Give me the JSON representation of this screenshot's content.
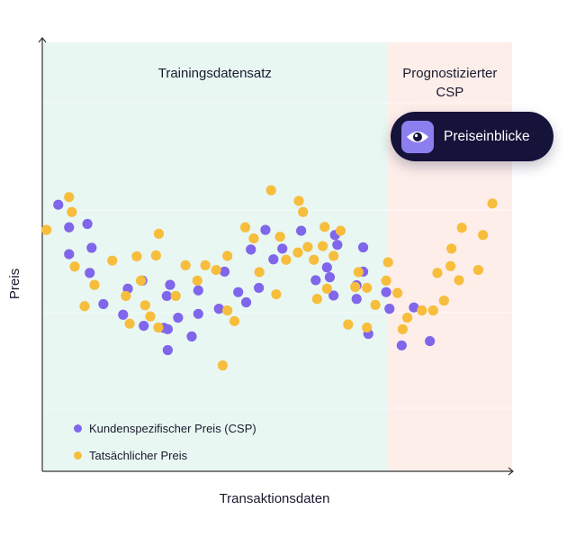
{
  "colors": {
    "training_bg": "#e8f7f2",
    "forecast_bg": "#fdeeea",
    "csp_dot": "#8066ea",
    "actual_dot": "#f7bd3c",
    "axis": "#333333",
    "badge_bg": "#15133a",
    "badge_icon_bg": "#8b7ff0"
  },
  "badge": {
    "label": "Preiseinblicke",
    "icon": "eye-icon"
  },
  "chart_data": {
    "type": "scatter",
    "xlabel": "Transaktionsdaten",
    "ylabel": "Preis",
    "xlim": [
      0,
      100
    ],
    "ylim": [
      0,
      100
    ],
    "regions": [
      {
        "name": "training",
        "label_lines": [
          "Trainingsdatensatz"
        ],
        "x_range": [
          0,
          73.5
        ]
      },
      {
        "name": "forecast",
        "label_lines": [
          "Prognostizierter",
          "CSP"
        ],
        "x_range": [
          73.5,
          100
        ]
      }
    ],
    "legend": [
      {
        "label": "Kundenspezifischer Preis (CSP)",
        "color": "#8066ea"
      },
      {
        "label": "Tatsächlicher Preis",
        "color": "#f7bd3c"
      }
    ],
    "series": [
      {
        "name": "Kundenspezifischer Preis (CSP)",
        "color": "#8066ea",
        "points": [
          [
            3.4,
            61.9
          ],
          [
            5.7,
            56.6
          ],
          [
            5.7,
            50.3
          ],
          [
            9.6,
            57.4
          ],
          [
            10.1,
            45.9
          ],
          [
            10.5,
            51.8
          ],
          [
            13.0,
            38.6
          ],
          [
            17.2,
            36.1
          ],
          [
            18.2,
            42.2
          ],
          [
            21.6,
            33.5
          ],
          [
            21.3,
            44.1
          ],
          [
            25.9,
            33.0
          ],
          [
            26.5,
            40.5
          ],
          [
            26.7,
            27.8
          ],
          [
            26.7,
            32.7
          ],
          [
            27.2,
            43.1
          ],
          [
            28.9,
            35.4
          ],
          [
            31.8,
            31.0
          ],
          [
            33.2,
            41.8
          ],
          [
            33.2,
            36.3
          ],
          [
            37.6,
            37.5
          ],
          [
            38.8,
            46.2
          ],
          [
            41.7,
            41.4
          ],
          [
            43.4,
            39.0
          ],
          [
            44.4,
            51.4
          ],
          [
            46.1,
            42.4
          ],
          [
            47.5,
            56.0
          ],
          [
            49.2,
            49.1
          ],
          [
            51.1,
            51.6
          ],
          [
            55.1,
            55.8
          ],
          [
            58.2,
            44.2
          ],
          [
            60.6,
            47.2
          ],
          [
            61.2,
            44.9
          ],
          [
            62.0,
            40.6
          ],
          [
            62.3,
            54.8
          ],
          [
            62.8,
            52.5
          ],
          [
            66.9,
            39.8
          ],
          [
            66.9,
            43.0
          ],
          [
            68.3,
            46.2
          ],
          [
            68.3,
            51.9
          ],
          [
            69.4,
            31.6
          ],
          [
            73.2,
            41.4
          ],
          [
            73.9,
            37.5
          ],
          [
            76.5,
            28.9
          ],
          [
            79.1,
            37.8
          ],
          [
            82.5,
            29.9
          ]
        ]
      },
      {
        "name": "Tatsächlicher Preis",
        "color": "#f7bd3c",
        "points": [
          [
            0.9,
            56.0
          ],
          [
            5.7,
            63.7
          ],
          [
            6.3,
            60.2
          ],
          [
            6.9,
            47.4
          ],
          [
            9.0,
            38.1
          ],
          [
            11.1,
            43.1
          ],
          [
            14.9,
            48.8
          ],
          [
            17.8,
            40.5
          ],
          [
            18.6,
            34.0
          ],
          [
            20.1,
            49.8
          ],
          [
            21.9,
            38.3
          ],
          [
            21.0,
            44.1
          ],
          [
            23.0,
            35.7
          ],
          [
            24.2,
            50.0
          ],
          [
            24.8,
            55.1
          ],
          [
            24.7,
            33.1
          ],
          [
            28.4,
            40.5
          ],
          [
            30.5,
            47.7
          ],
          [
            33.0,
            44.1
          ],
          [
            34.7,
            47.7
          ],
          [
            37.0,
            46.6
          ],
          [
            38.4,
            24.2
          ],
          [
            39.4,
            37.1
          ],
          [
            39.4,
            49.9
          ],
          [
            40.9,
            34.6
          ],
          [
            43.2,
            56.6
          ],
          [
            45.0,
            54.0
          ],
          [
            46.2,
            46.1
          ],
          [
            48.7,
            65.3
          ],
          [
            49.8,
            40.9
          ],
          [
            50.6,
            54.4
          ],
          [
            51.9,
            49.0
          ],
          [
            54.4,
            50.7
          ],
          [
            54.6,
            62.8
          ],
          [
            55.5,
            60.2
          ],
          [
            56.5,
            52.0
          ],
          [
            57.8,
            49.0
          ],
          [
            58.5,
            39.8
          ],
          [
            59.7,
            52.2
          ],
          [
            60.1,
            56.7
          ],
          [
            60.6,
            42.2
          ],
          [
            62.0,
            49.9
          ],
          [
            63.5,
            55.8
          ],
          [
            65.1,
            33.8
          ],
          [
            66.6,
            42.6
          ],
          [
            67.3,
            46.1
          ],
          [
            69.1,
            42.4
          ],
          [
            69.1,
            33.1
          ],
          [
            70.9,
            38.4
          ],
          [
            73.2,
            44.1
          ],
          [
            73.6,
            48.4
          ],
          [
            75.6,
            41.2
          ],
          [
            76.7,
            32.7
          ],
          [
            77.7,
            35.4
          ],
          [
            80.8,
            37.1
          ],
          [
            83.2,
            37.1
          ],
          [
            84.1,
            45.9
          ],
          [
            85.5,
            39.4
          ],
          [
            86.9,
            47.5
          ],
          [
            87.1,
            51.6
          ],
          [
            88.7,
            44.2
          ],
          [
            89.3,
            56.5
          ],
          [
            92.8,
            46.6
          ],
          [
            93.8,
            54.8
          ],
          [
            95.8,
            62.2
          ]
        ]
      }
    ]
  }
}
